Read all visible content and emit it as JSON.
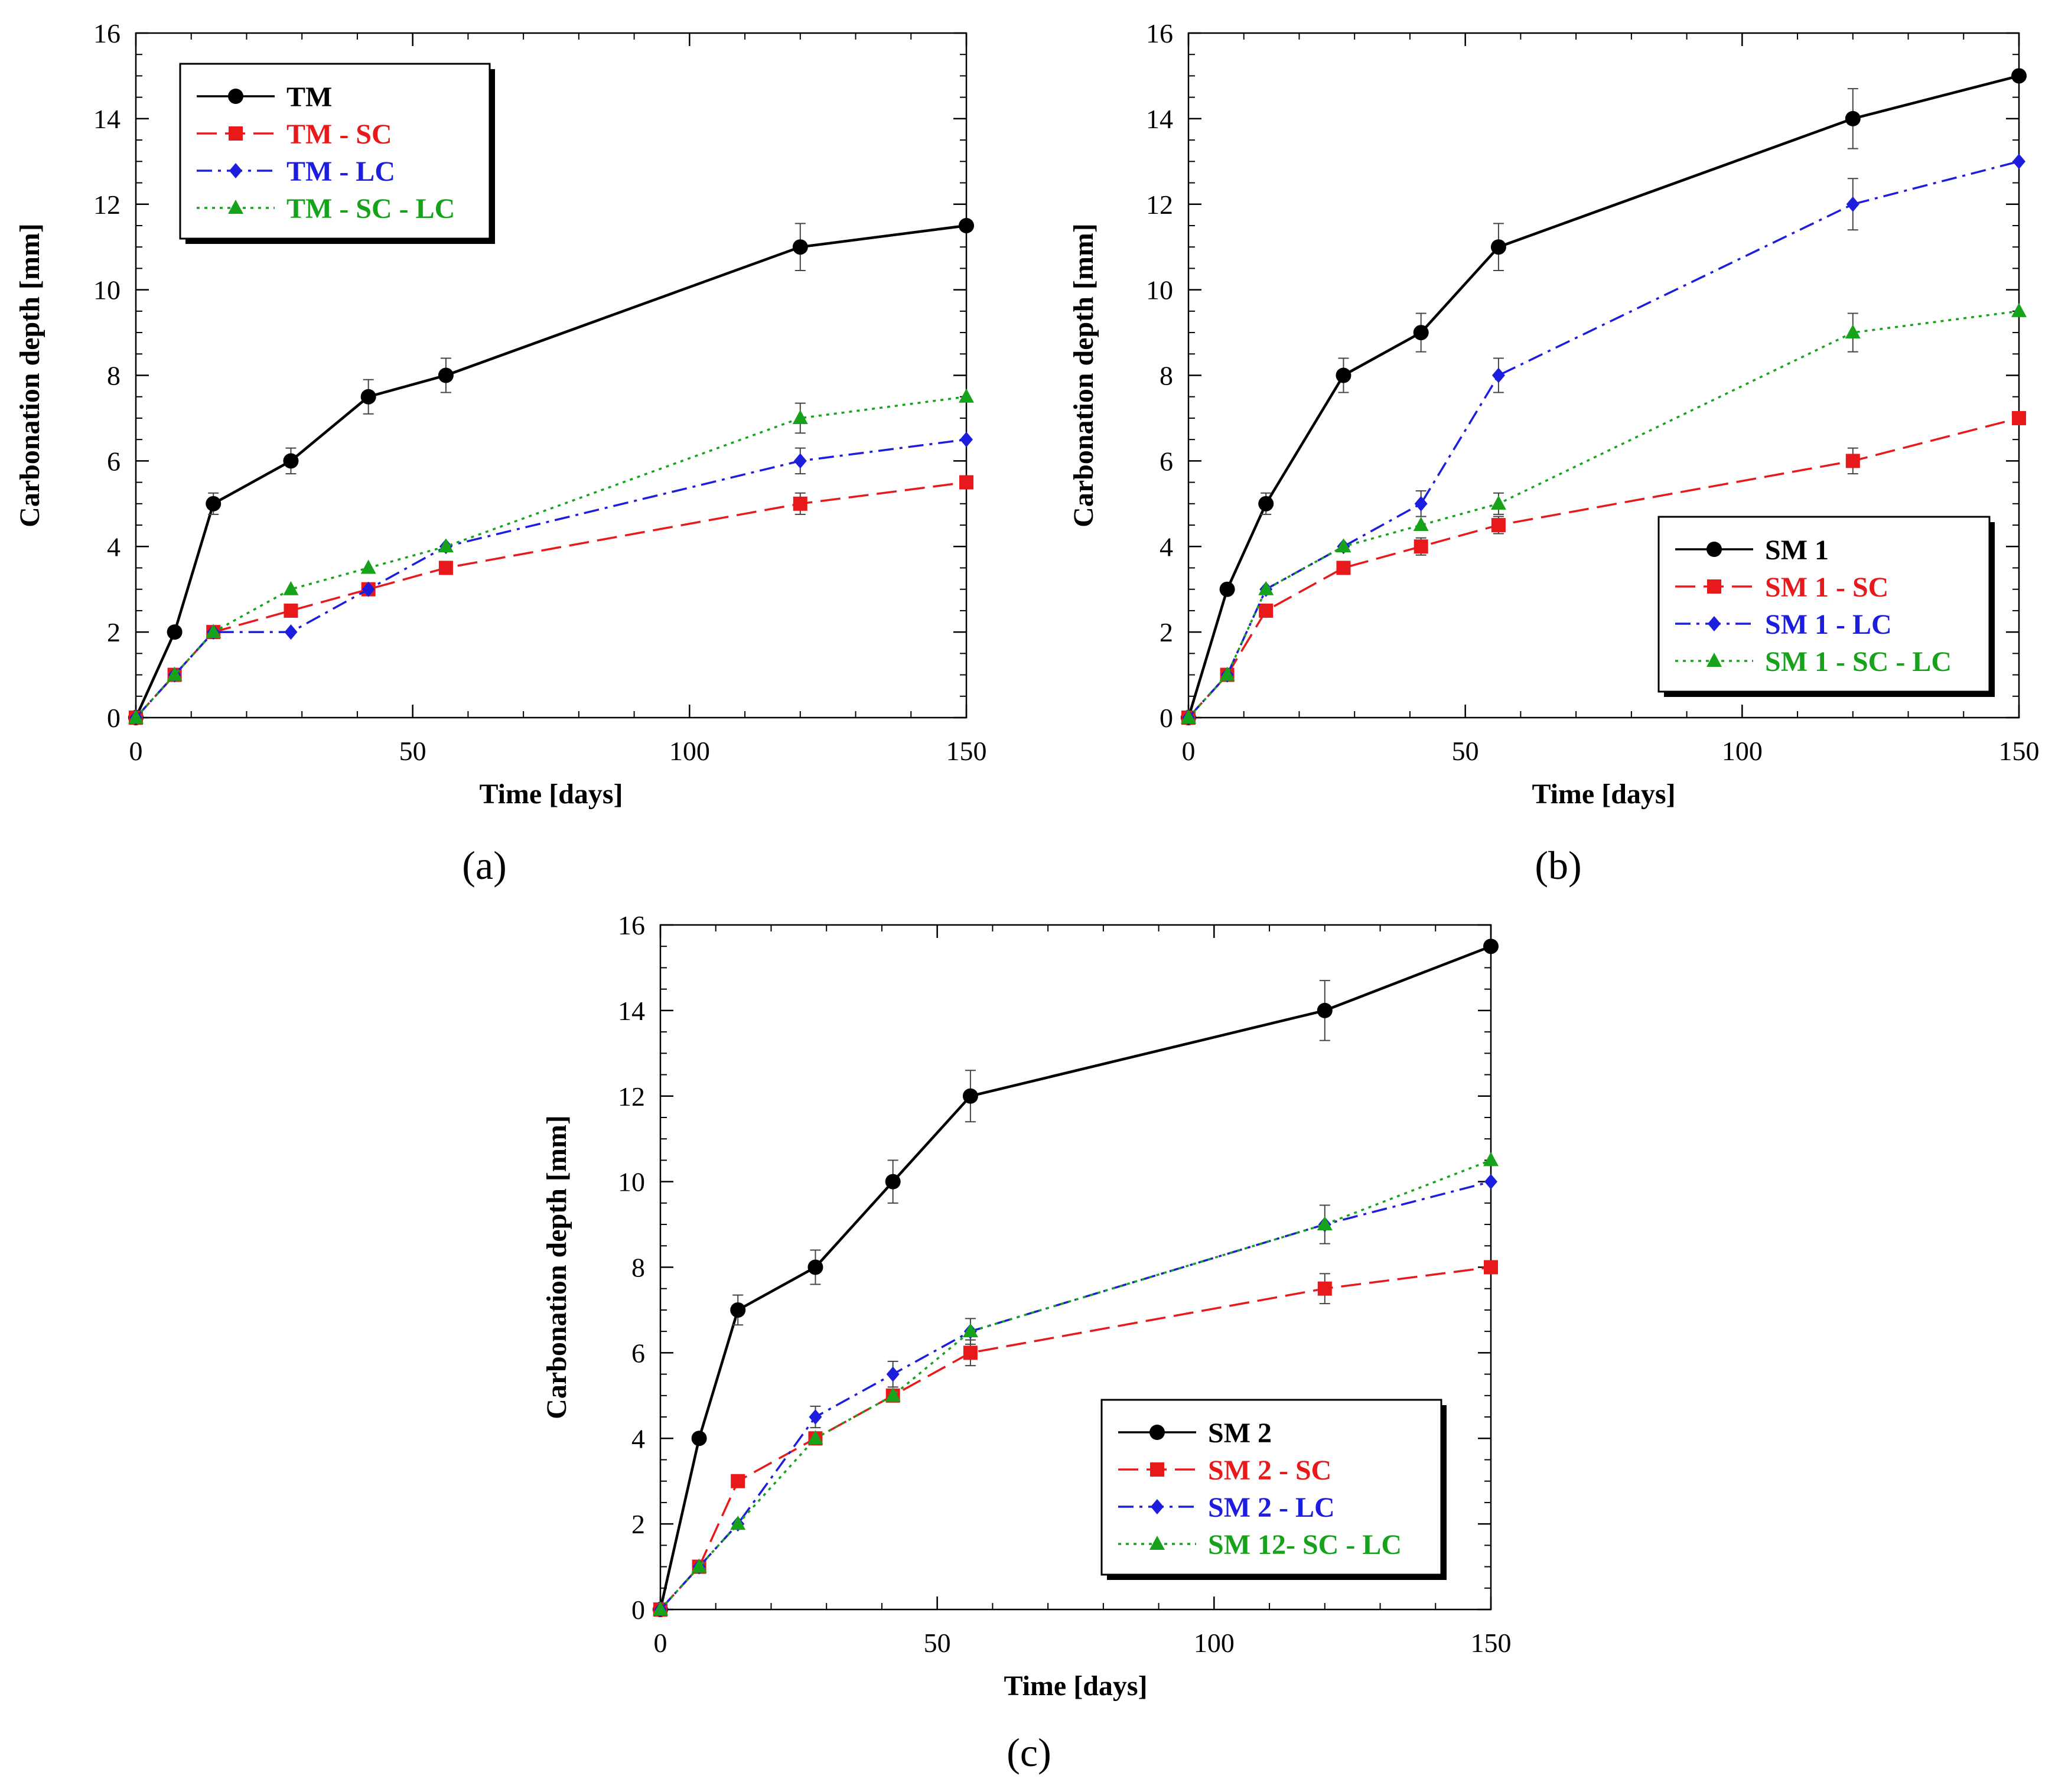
{
  "figure": {
    "panel_labels": [
      "(a)",
      "(b)",
      "(c)"
    ]
  },
  "chart_data": [
    {
      "type": "line",
      "panel": "(a)",
      "xlabel": "Time [days]",
      "ylabel": "Carbonation depth [mm]",
      "xlim": [
        0,
        150
      ],
      "ylim": [
        0,
        16
      ],
      "xticks": [
        0,
        50,
        100,
        150
      ],
      "yticks": [
        0,
        2,
        4,
        6,
        8,
        10,
        12,
        14,
        16
      ],
      "grid": false,
      "legend_position": "top-left",
      "x": [
        0,
        7,
        14,
        28,
        42,
        56,
        120,
        150
      ],
      "series": [
        {
          "name": "TM",
          "color": "#000000",
          "marker": "circle",
          "dash": "solid",
          "values": [
            0,
            2,
            5,
            6,
            7.5,
            8,
            11,
            11.5
          ],
          "error": [
            0,
            0,
            0.25,
            0.3,
            0.4,
            0.4,
            0.55,
            0
          ]
        },
        {
          "name": "TM - SC",
          "color": "#e8191b",
          "marker": "square",
          "dash": "dashed",
          "values": [
            0,
            1,
            2,
            2.5,
            3,
            3.5,
            5,
            5.5
          ],
          "error": [
            0,
            0,
            0,
            0,
            0,
            0,
            0.25,
            0
          ]
        },
        {
          "name": "TM - LC",
          "color": "#1d1ddd",
          "marker": "diamond",
          "dash": "dashdot",
          "values": [
            0,
            1,
            2,
            2,
            3,
            4,
            6,
            6.5
          ],
          "error": [
            0,
            0,
            0,
            0,
            0,
            0,
            0.3,
            0
          ]
        },
        {
          "name": "TM - SC - LC",
          "color": "#16a21a",
          "marker": "triangle",
          "dash": "dotted",
          "values": [
            0,
            1,
            2,
            3,
            3.5,
            4,
            7,
            7.5
          ],
          "error": [
            0,
            0,
            0,
            0,
            0,
            0,
            0.35,
            0
          ]
        }
      ]
    },
    {
      "type": "line",
      "panel": "(b)",
      "xlabel": "Time [days]",
      "ylabel": "Carbonation depth [mm]",
      "xlim": [
        0,
        150
      ],
      "ylim": [
        0,
        16
      ],
      "xticks": [
        0,
        50,
        100,
        150
      ],
      "yticks": [
        0,
        2,
        4,
        6,
        8,
        10,
        12,
        14,
        16
      ],
      "grid": false,
      "legend_position": "bottom-right",
      "x": [
        0,
        7,
        14,
        28,
        42,
        56,
        120,
        150
      ],
      "series": [
        {
          "name": "SM 1",
          "color": "#000000",
          "marker": "circle",
          "dash": "solid",
          "values": [
            0,
            3,
            5,
            8,
            9,
            11,
            14,
            15
          ],
          "error": [
            0,
            0,
            0.25,
            0.4,
            0.45,
            0.55,
            0.7,
            0
          ]
        },
        {
          "name": "SM 1 - SC",
          "color": "#e8191b",
          "marker": "square",
          "dash": "dashed",
          "values": [
            0,
            1,
            2.5,
            3.5,
            4,
            4.5,
            6,
            7
          ],
          "error": [
            0,
            0,
            0,
            0,
            0.2,
            0.2,
            0.3,
            0
          ]
        },
        {
          "name": "SM 1 - LC",
          "color": "#1d1ddd",
          "marker": "diamond",
          "dash": "dashdot",
          "values": [
            0,
            1,
            3,
            4,
            5,
            8,
            12,
            13
          ],
          "error": [
            0,
            0,
            0,
            0,
            0.3,
            0.4,
            0.6,
            0
          ]
        },
        {
          "name": "SM 1 - SC - LC",
          "color": "#16a21a",
          "marker": "triangle",
          "dash": "dotted",
          "values": [
            0,
            1,
            3,
            4,
            4.5,
            5,
            9,
            9.5
          ],
          "error": [
            0,
            0,
            0,
            0,
            0,
            0.25,
            0.45,
            0
          ]
        }
      ]
    },
    {
      "type": "line",
      "panel": "(c)",
      "xlabel": "Time [days]",
      "ylabel": "Carbonation depth [mm]",
      "xlim": [
        0,
        150
      ],
      "ylim": [
        0,
        16
      ],
      "xticks": [
        0,
        50,
        100,
        150
      ],
      "yticks": [
        0,
        2,
        4,
        6,
        8,
        10,
        12,
        14,
        16
      ],
      "grid": false,
      "legend_position": "bottom-right",
      "x": [
        0,
        7,
        14,
        28,
        42,
        56,
        120,
        150
      ],
      "series": [
        {
          "name": "SM 2",
          "color": "#000000",
          "marker": "circle",
          "dash": "solid",
          "values": [
            0,
            4,
            7,
            8,
            10,
            12,
            14,
            15.5
          ],
          "error": [
            0,
            0,
            0.35,
            0.4,
            0.5,
            0.6,
            0.7,
            0
          ]
        },
        {
          "name": "SM 2 - SC",
          "color": "#e8191b",
          "marker": "square",
          "dash": "dashed",
          "values": [
            0,
            1,
            3,
            4,
            5,
            6,
            7.5,
            8
          ],
          "error": [
            0,
            0,
            0,
            0,
            0,
            0.3,
            0.35,
            0
          ]
        },
        {
          "name": "SM 2 - LC",
          "color": "#1d1ddd",
          "marker": "diamond",
          "dash": "dashdot",
          "values": [
            0,
            1,
            2,
            4.5,
            5.5,
            6.5,
            9,
            10
          ],
          "error": [
            0,
            0,
            0,
            0.25,
            0.3,
            0.3,
            0.45,
            0
          ]
        },
        {
          "name": "SM 12- SC - LC",
          "color": "#16a21a",
          "marker": "triangle",
          "dash": "dotted",
          "values": [
            0,
            1,
            2,
            4,
            5,
            6.5,
            9,
            10.5
          ],
          "error": [
            0,
            0,
            0,
            0,
            0,
            0,
            0,
            0
          ]
        }
      ]
    }
  ]
}
